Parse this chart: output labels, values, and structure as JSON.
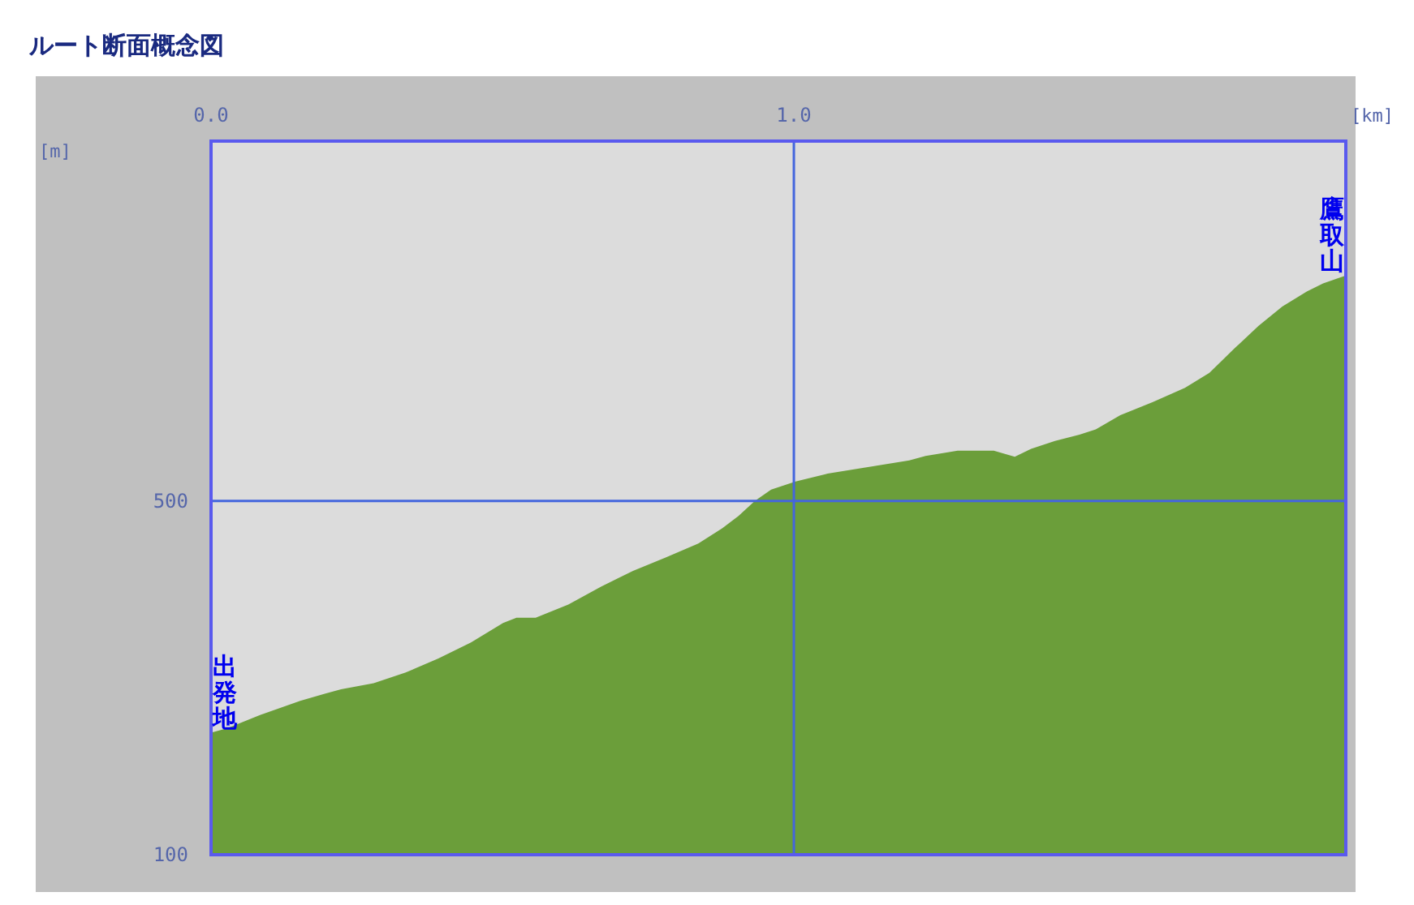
{
  "chart_data": {
    "type": "area",
    "title": "ルート断面概念図",
    "xlabel": "[km]",
    "ylabel": "[m]",
    "x": [
      0,
      0.028,
      0.084,
      0.153,
      0.195,
      0.223,
      0.279,
      0.334,
      0.39,
      0.446,
      0.501,
      0.524,
      0.557,
      0.613,
      0.669,
      0.724,
      0.78,
      0.836,
      0.877,
      0.905,
      0.933,
      0.961,
      1.003,
      1.058,
      1.142,
      1.198,
      1.226,
      1.281,
      1.343,
      1.379,
      1.407,
      1.448,
      1.49,
      1.518,
      1.56,
      1.616,
      1.671,
      1.713,
      1.755,
      1.797,
      1.838,
      1.88,
      1.908,
      1.947
    ],
    "values": [
      238,
      243,
      258,
      274,
      282,
      287,
      294,
      306,
      322,
      340,
      362,
      368,
      368,
      383,
      403,
      421,
      436,
      452,
      469,
      483,
      500,
      513,
      522,
      531,
      540,
      546,
      551,
      557,
      557,
      550,
      559,
      568,
      575,
      581,
      597,
      612,
      628,
      645,
      672,
      698,
      720,
      737,
      746,
      755
    ],
    "color": "#6b9e3a",
    "xlim": [
      0,
      1.947
    ],
    "ylim": [
      100,
      907
    ],
    "xticks": [
      {
        "value": 0,
        "label": "0.0"
      },
      {
        "value": 1,
        "label": "1.0"
      }
    ],
    "yticks": [
      100,
      500
    ],
    "grid": true,
    "annotations": [
      {
        "text": "出発地",
        "x": 0,
        "y": 238
      },
      {
        "text": "鷹取山",
        "x": 1.947,
        "y": 755
      }
    ]
  }
}
